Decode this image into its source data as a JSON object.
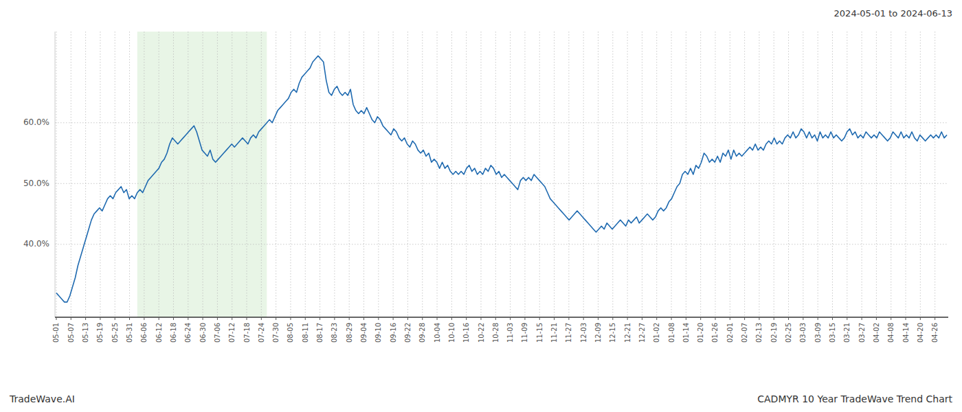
{
  "chart_data": {
    "type": "line",
    "title": "2024-05-01 to 2024-06-13",
    "annotations": [
      "TradeWave.AI",
      "CADMYR 10 Year TradeWave Trend Chart"
    ],
    "color": "#1f6ab0",
    "grid": true,
    "line_style": "solid",
    "highlight_x": [
      30,
      78
    ],
    "highlight_color": "#d6ecd2",
    "xlim": [
      -0.5,
      330.5
    ],
    "xticks": [
      {
        "value": 0,
        "label": "05-01"
      },
      {
        "value": 5.426,
        "label": "05-07"
      },
      {
        "value": 10.852,
        "label": "05-13"
      },
      {
        "value": 16.279,
        "label": "05-19"
      },
      {
        "value": 21.705,
        "label": "05-25"
      },
      {
        "value": 27.131,
        "label": "05-31"
      },
      {
        "value": 32.557,
        "label": "06-06"
      },
      {
        "value": 37.984,
        "label": "06-12"
      },
      {
        "value": 43.41,
        "label": "06-18"
      },
      {
        "value": 48.836,
        "label": "06-24"
      },
      {
        "value": 54.262,
        "label": "06-30"
      },
      {
        "value": 59.689,
        "label": "07-06"
      },
      {
        "value": 65.115,
        "label": "07-12"
      },
      {
        "value": 70.541,
        "label": "07-18"
      },
      {
        "value": 75.967,
        "label": "07-24"
      },
      {
        "value": 81.393,
        "label": "07-30"
      },
      {
        "value": 86.82,
        "label": "08-05"
      },
      {
        "value": 92.246,
        "label": "08-11"
      },
      {
        "value": 97.672,
        "label": "08-17"
      },
      {
        "value": 103.098,
        "label": "08-23"
      },
      {
        "value": 108.525,
        "label": "08-29"
      },
      {
        "value": 113.951,
        "label": "09-04"
      },
      {
        "value": 119.377,
        "label": "09-10"
      },
      {
        "value": 124.803,
        "label": "09-16"
      },
      {
        "value": 130.23,
        "label": "09-22"
      },
      {
        "value": 135.656,
        "label": "09-28"
      },
      {
        "value": 141.082,
        "label": "10-04"
      },
      {
        "value": 146.508,
        "label": "10-10"
      },
      {
        "value": 151.934,
        "label": "10-16"
      },
      {
        "value": 157.361,
        "label": "10-22"
      },
      {
        "value": 162.787,
        "label": "10-28"
      },
      {
        "value": 168.213,
        "label": "11-03"
      },
      {
        "value": 173.639,
        "label": "11-09"
      },
      {
        "value": 179.066,
        "label": "11-15"
      },
      {
        "value": 184.492,
        "label": "11-21"
      },
      {
        "value": 189.918,
        "label": "11-27"
      },
      {
        "value": 195.344,
        "label": "12-03"
      },
      {
        "value": 200.77,
        "label": "12-09"
      },
      {
        "value": 206.197,
        "label": "12-15"
      },
      {
        "value": 211.623,
        "label": "12-21"
      },
      {
        "value": 217.049,
        "label": "12-27"
      },
      {
        "value": 222.475,
        "label": "01-02"
      },
      {
        "value": 227.902,
        "label": "01-08"
      },
      {
        "value": 233.328,
        "label": "01-14"
      },
      {
        "value": 238.754,
        "label": "01-20"
      },
      {
        "value": 244.18,
        "label": "01-26"
      },
      {
        "value": 249.607,
        "label": "02-01"
      },
      {
        "value": 255.033,
        "label": "02-07"
      },
      {
        "value": 260.459,
        "label": "02-13"
      },
      {
        "value": 265.885,
        "label": "02-19"
      },
      {
        "value": 271.311,
        "label": "02-25"
      },
      {
        "value": 276.738,
        "label": "03-03"
      },
      {
        "value": 282.164,
        "label": "03-09"
      },
      {
        "value": 287.59,
        "label": "03-15"
      },
      {
        "value": 293.016,
        "label": "03-21"
      },
      {
        "value": 298.443,
        "label": "03-27"
      },
      {
        "value": 303.869,
        "label": "04-02"
      },
      {
        "value": 309.295,
        "label": "04-08"
      },
      {
        "value": 314.721,
        "label": "04-14"
      },
      {
        "value": 320.148,
        "label": "04-20"
      },
      {
        "value": 325.574,
        "label": "04-26"
      }
    ],
    "ylim": [
      28.0,
      75.0
    ],
    "yticks": [
      {
        "value": 40.0,
        "label": "40.0%"
      },
      {
        "value": 50.0,
        "label": "50.0%"
      },
      {
        "value": 60.0,
        "label": "60.0%"
      }
    ],
    "values": [
      32.0,
      31.5,
      31.0,
      30.5,
      30.5,
      31.5,
      33.0,
      34.5,
      36.5,
      38.0,
      39.5,
      41.0,
      42.5,
      44.0,
      45.0,
      45.5,
      46.0,
      45.5,
      46.5,
      47.5,
      48.0,
      47.5,
      48.5,
      49.0,
      49.5,
      48.5,
      49.0,
      47.5,
      48.0,
      47.5,
      48.5,
      49.0,
      48.5,
      49.5,
      50.5,
      51.0,
      51.5,
      52.0,
      52.5,
      53.5,
      54.0,
      55.0,
      56.5,
      57.5,
      57.0,
      56.5,
      57.0,
      57.5,
      58.0,
      58.5,
      59.0,
      59.5,
      58.5,
      57.0,
      55.5,
      55.0,
      54.5,
      55.5,
      54.0,
      53.5,
      54.0,
      54.5,
      55.0,
      55.5,
      56.0,
      56.5,
      56.0,
      56.5,
      57.0,
      57.5,
      57.0,
      56.5,
      57.5,
      58.0,
      57.5,
      58.5,
      59.0,
      59.5,
      60.0,
      60.5,
      60.0,
      61.0,
      62.0,
      62.5,
      63.0,
      63.5,
      64.0,
      65.0,
      65.5,
      65.0,
      66.5,
      67.5,
      68.0,
      68.5,
      69.0,
      70.0,
      70.5,
      71.0,
      70.5,
      70.0,
      67.0,
      65.0,
      64.5,
      65.5,
      66.0,
      65.0,
      64.5,
      65.0,
      64.5,
      65.5,
      63.0,
      62.0,
      61.5,
      62.0,
      61.5,
      62.5,
      61.5,
      60.5,
      60.0,
      61.0,
      60.5,
      59.5,
      59.0,
      58.5,
      58.0,
      59.0,
      58.5,
      57.5,
      57.0,
      57.5,
      56.5,
      56.0,
      57.0,
      56.5,
      55.5,
      55.0,
      55.5,
      54.5,
      55.0,
      53.5,
      54.0,
      53.5,
      52.5,
      53.5,
      52.5,
      53.0,
      52.0,
      51.5,
      52.0,
      51.5,
      52.0,
      51.5,
      52.5,
      53.0,
      52.0,
      52.5,
      51.5,
      52.0,
      51.5,
      52.5,
      52.0,
      53.0,
      52.5,
      51.5,
      52.0,
      51.0,
      51.5,
      51.0,
      50.5,
      50.0,
      49.5,
      49.0,
      50.5,
      51.0,
      50.5,
      51.0,
      50.5,
      51.5,
      51.0,
      50.5,
      50.0,
      49.5,
      48.5,
      47.5,
      47.0,
      46.5,
      46.0,
      45.5,
      45.0,
      44.5,
      44.0,
      44.5,
      45.0,
      45.5,
      45.0,
      44.5,
      44.0,
      43.5,
      43.0,
      42.5,
      42.0,
      42.5,
      43.0,
      42.5,
      43.5,
      43.0,
      42.5,
      43.0,
      43.5,
      44.0,
      43.5,
      43.0,
      44.0,
      43.5,
      44.0,
      44.5,
      43.5,
      44.0,
      44.5,
      45.0,
      44.5,
      44.0,
      44.5,
      45.5,
      46.0,
      45.5,
      46.0,
      47.0,
      47.5,
      48.5,
      49.5,
      50.0,
      51.5,
      52.0,
      51.5,
      52.5,
      51.5,
      53.0,
      52.5,
      53.5,
      55.0,
      54.5,
      53.5,
      54.0,
      53.5,
      54.5,
      53.5,
      55.0,
      54.5,
      55.5,
      54.0,
      55.5,
      54.5,
      55.0,
      54.5,
      55.0,
      55.5,
      56.0,
      55.5,
      56.5,
      55.5,
      56.0,
      55.5,
      56.5,
      57.0,
      56.5,
      57.5,
      56.5,
      57.0,
      56.5,
      57.5,
      58.0,
      57.5,
      58.5,
      57.5,
      58.0,
      59.0,
      58.5,
      57.5,
      58.5,
      57.5,
      58.0,
      57.0,
      58.5,
      57.5,
      58.0,
      57.5,
      58.5,
      57.5,
      58.0,
      57.5,
      57.0,
      57.5,
      58.5,
      59.0,
      58.0,
      58.5,
      57.5,
      58.0,
      57.5,
      58.5,
      58.0,
      57.5,
      58.0,
      57.5,
      58.5,
      58.0,
      57.5,
      57.0,
      57.5,
      58.5,
      58.0,
      57.5,
      58.5,
      57.5,
      58.0,
      57.5,
      58.5,
      57.5,
      57.0,
      58.0,
      57.5,
      57.0,
      57.5,
      58.0,
      57.5,
      58.0,
      57.5,
      58.5,
      57.5,
      58.0
    ]
  }
}
